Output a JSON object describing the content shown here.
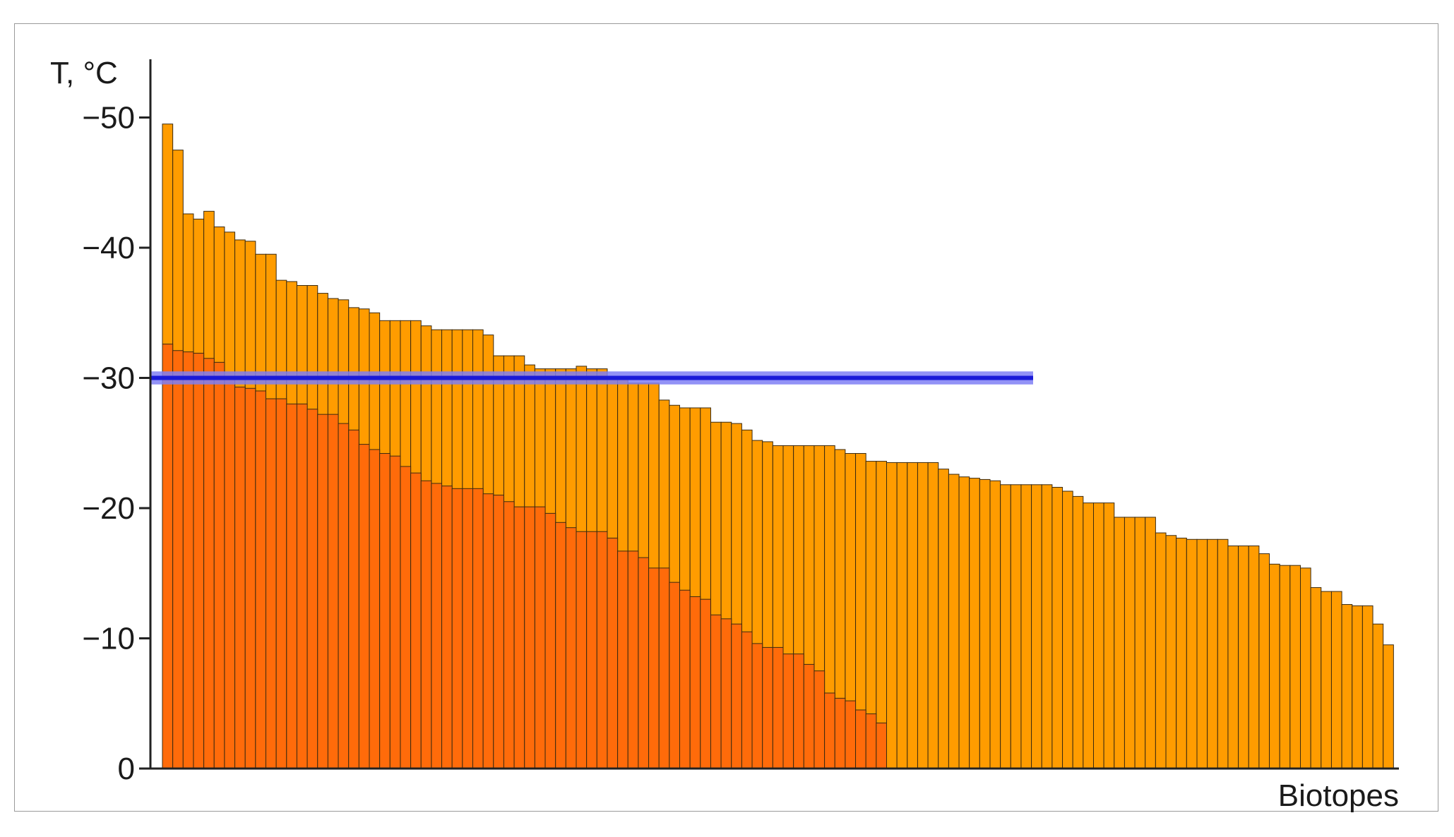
{
  "chart_data": {
    "type": "bar",
    "xlabel": "Biotopes",
    "ylabel": "T, °C",
    "ylim": [
      0,
      -55
    ],
    "y_ticks": [
      "−50",
      "−40",
      "−30",
      "−20",
      "−10",
      "0"
    ],
    "y_tick_values": [
      -50,
      -40,
      -30,
      -20,
      -10,
      0
    ],
    "grid": false,
    "reference_line": {
      "value": -30,
      "band": [
        -29.5,
        -30.5
      ],
      "color": "#1a1ad8",
      "band_color": "#7f7ff5"
    },
    "series": [
      {
        "color": "#ff9c00",
        "values": [
          -49.5,
          -47.5,
          -42.6,
          -42.2,
          -42.8,
          -41.6,
          -41.2,
          -40.6,
          -40.5,
          -39.5,
          -39.5,
          -37.5,
          -37.4,
          -37.1,
          -37.1,
          -36.5,
          -36.1,
          -36.0,
          -35.4,
          -35.3,
          -35.0,
          -34.4,
          -34.4,
          -34.4,
          -34.4,
          -34.0,
          -33.7,
          -33.7,
          -33.7,
          -33.7,
          -33.7,
          -33.3,
          -31.7,
          -31.7,
          -31.7,
          -31.0,
          -30.7,
          -30.7,
          -30.7,
          -30.7,
          -30.9,
          -30.7,
          -30.7,
          -29.9,
          -29.9,
          -29.6,
          -29.6,
          -29.6,
          -28.3,
          -27.9,
          -27.7,
          -27.7,
          -27.7,
          -26.6,
          -26.6,
          -26.5,
          -26.0,
          -25.2,
          -25.1,
          -24.8,
          -24.8,
          -24.8,
          -24.8,
          -24.8,
          -24.8,
          -24.5,
          -24.2,
          -24.2,
          -23.6,
          -23.6,
          -23.5,
          -23.5,
          -23.5,
          -23.5,
          -23.5,
          -23.0,
          -22.6,
          -22.4,
          -22.3,
          -22.2,
          -22.1,
          -21.8,
          -21.8,
          -21.8,
          -21.8,
          -21.8,
          -21.6,
          -21.3,
          -20.9,
          -20.4,
          -20.4,
          -20.4,
          -19.3,
          -19.3,
          -19.3,
          -19.3,
          -18.1,
          -17.9,
          -17.7,
          -17.6,
          -17.6,
          -17.6,
          -17.6,
          -17.1,
          -17.1,
          -17.1,
          -16.5,
          -15.7,
          -15.6,
          -15.6,
          -15.4,
          -13.9,
          -13.6,
          -13.6,
          -12.6,
          -12.5,
          -12.5,
          -11.1,
          -9.5
        ]
      },
      {
        "color": "#ff6b0a",
        "values": [
          -32.6,
          -32.1,
          -32.0,
          -31.9,
          -31.5,
          -31.2,
          -30.0,
          -29.3,
          -29.2,
          -29.0,
          -28.4,
          -28.4,
          -28.0,
          -28.0,
          -27.6,
          -27.2,
          -27.2,
          -26.5,
          -26.0,
          -24.9,
          -24.5,
          -24.2,
          -24.0,
          -23.2,
          -22.7,
          -22.1,
          -21.9,
          -21.7,
          -21.5,
          -21.5,
          -21.5,
          -21.1,
          -21.0,
          -20.5,
          -20.1,
          -20.1,
          -20.1,
          -19.6,
          -18.9,
          -18.5,
          -18.2,
          -18.2,
          -18.2,
          -17.7,
          -16.7,
          -16.7,
          -16.2,
          -15.4,
          -15.4,
          -14.3,
          -13.7,
          -13.2,
          -13.0,
          -11.8,
          -11.5,
          -11.1,
          -10.5,
          -9.6,
          -9.3,
          -9.3,
          -8.8,
          -8.8,
          -8.0,
          -7.5,
          -5.8,
          -5.4,
          -5.2,
          -4.5,
          -4.2,
          -3.5
        ]
      }
    ]
  }
}
